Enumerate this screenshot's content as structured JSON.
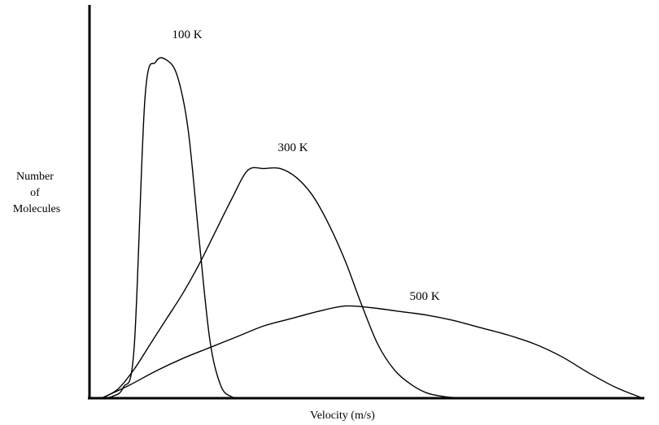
{
  "chart_data": {
    "type": "line",
    "title": "",
    "xlabel": "Velocity (m/s)",
    "ylabel_lines": [
      "Number",
      "of",
      "Molecules"
    ],
    "xlim": [
      0,
      100
    ],
    "ylim": [
      0,
      100
    ],
    "grid": false,
    "series": [
      {
        "name": "100 K",
        "x": [
          0,
          2,
          4,
          6,
          8,
          10,
          12,
          14,
          16,
          18,
          20,
          22,
          24,
          26,
          28,
          30,
          32,
          34
        ],
        "y": [
          0,
          0.5,
          3,
          14,
          83,
          93,
          93.5,
          89,
          74,
          44,
          16,
          3.5,
          0.4,
          0,
          0,
          0,
          0,
          0
        ]
      },
      {
        "name": "300 K",
        "x": [
          0,
          3,
          6,
          9,
          12,
          15,
          18,
          21,
          24,
          27,
          30,
          33,
          36,
          39,
          42,
          45,
          48,
          51,
          54,
          57,
          60,
          63,
          66,
          69
        ],
        "y": [
          0,
          2.5,
          8,
          15,
          22,
          29,
          37,
          46,
          55,
          63,
          63.5,
          63.5,
          61,
          56,
          48,
          38,
          26,
          15,
          8,
          4,
          1.5,
          0.5,
          0.1,
          0
        ]
      },
      {
        "name": "500 K",
        "x": [
          0,
          5,
          10,
          15,
          20,
          25,
          30,
          35,
          40,
          45,
          50,
          55,
          60,
          65,
          70,
          75,
          80,
          85,
          90,
          95,
          100
        ],
        "y": [
          0,
          3.5,
          7.5,
          11,
          14,
          17,
          20,
          22,
          24,
          25.5,
          25,
          24,
          23,
          21.5,
          19.5,
          17.5,
          15,
          11.5,
          7,
          3,
          0
        ]
      }
    ]
  }
}
